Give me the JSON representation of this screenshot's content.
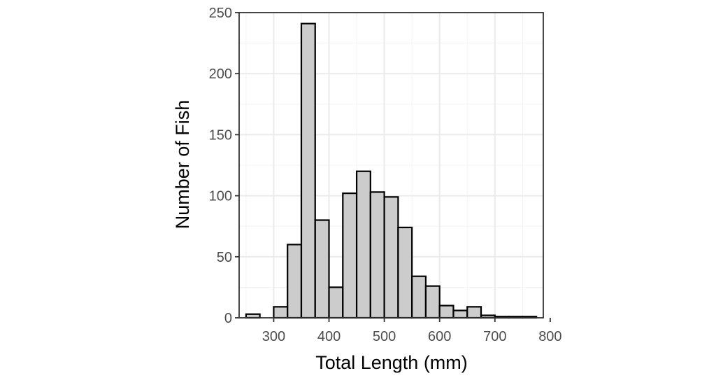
{
  "chart_data": {
    "type": "bar",
    "title": "",
    "xlabel": "Total Length (mm)",
    "ylabel": "Number of Fish",
    "bin_width": 25,
    "bins": [
      {
        "start": 250,
        "end": 275,
        "count": 3
      },
      {
        "start": 275,
        "end": 300,
        "count": 0
      },
      {
        "start": 300,
        "end": 325,
        "count": 9
      },
      {
        "start": 325,
        "end": 350,
        "count": 60
      },
      {
        "start": 350,
        "end": 375,
        "count": 241
      },
      {
        "start": 375,
        "end": 400,
        "count": 80
      },
      {
        "start": 400,
        "end": 425,
        "count": 25
      },
      {
        "start": 425,
        "end": 450,
        "count": 102
      },
      {
        "start": 450,
        "end": 475,
        "count": 120
      },
      {
        "start": 475,
        "end": 500,
        "count": 103
      },
      {
        "start": 500,
        "end": 525,
        "count": 99
      },
      {
        "start": 525,
        "end": 550,
        "count": 74
      },
      {
        "start": 550,
        "end": 575,
        "count": 34
      },
      {
        "start": 575,
        "end": 600,
        "count": 26
      },
      {
        "start": 600,
        "end": 625,
        "count": 10
      },
      {
        "start": 625,
        "end": 650,
        "count": 6
      },
      {
        "start": 650,
        "end": 675,
        "count": 9
      },
      {
        "start": 675,
        "end": 700,
        "count": 2
      },
      {
        "start": 700,
        "end": 725,
        "count": 1
      },
      {
        "start": 725,
        "end": 750,
        "count": 1
      },
      {
        "start": 750,
        "end": 775,
        "count": 1
      }
    ],
    "xlim": [
      237.5,
      787.5
    ],
    "ylim": [
      0,
      250
    ],
    "x_ticks": [
      {
        "value": 300,
        "label": "300"
      },
      {
        "value": 400,
        "label": "400"
      },
      {
        "value": 500,
        "label": "500"
      },
      {
        "value": 600,
        "label": "600"
      },
      {
        "value": 700,
        "label": "700"
      },
      {
        "value": 800,
        "label": "800"
      }
    ],
    "y_ticks": [
      {
        "value": 0,
        "label": "0"
      },
      {
        "value": 50,
        "label": "50"
      },
      {
        "value": 100,
        "label": "100"
      },
      {
        "value": 150,
        "label": "150"
      },
      {
        "value": 200,
        "label": "200"
      },
      {
        "value": 250,
        "label": "250"
      }
    ],
    "grid": true,
    "legend": "none",
    "colors": {
      "bar_fill": "#cccccc",
      "bar_outline": "#000000",
      "grid": "#ebebeb",
      "panel_border": "#333333",
      "tick_text": "#4d4d4d"
    }
  }
}
